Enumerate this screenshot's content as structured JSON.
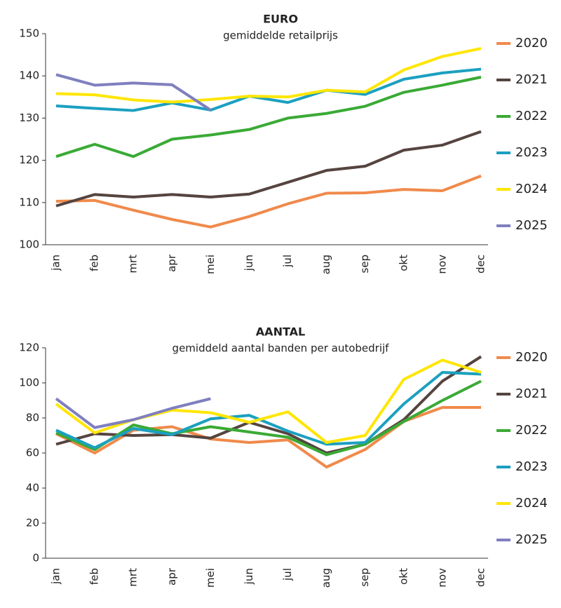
{
  "chart_data": [
    {
      "type": "line",
      "title": "EURO",
      "subtitle": "gemiddelde retailprijs",
      "categories": [
        "jan",
        "feb",
        "mrt",
        "apr",
        "mei",
        "jun",
        "jul",
        "aug",
        "sep",
        "okt",
        "nov",
        "dec"
      ],
      "ylim": [
        100,
        150
      ],
      "yticks": [
        100,
        110,
        120,
        130,
        140,
        150
      ],
      "series": [
        {
          "name": "2020",
          "color": "#f08a4b",
          "values": [
            110.3,
            110.5,
            108.2,
            106,
            104.2,
            106.7,
            109.7,
            112.2,
            112.3,
            113.1,
            112.8,
            116.3
          ]
        },
        {
          "name": "2021",
          "color": "#55443f",
          "values": [
            109.2,
            111.9,
            111.3,
            111.9,
            111.3,
            112,
            114.8,
            117.6,
            118.6,
            122.4,
            123.6,
            126.8
          ]
        },
        {
          "name": "2022",
          "color": "#3aaa35",
          "values": [
            120.9,
            123.8,
            120.9,
            125,
            126,
            127.3,
            130,
            131.1,
            132.8,
            136.1,
            137.8,
            139.7
          ]
        },
        {
          "name": "2023",
          "color": "#1ba0c0",
          "values": [
            132.9,
            132.3,
            131.8,
            133.6,
            131.9,
            135.2,
            133.7,
            136.6,
            135.6,
            139.2,
            140.7,
            141.6
          ]
        },
        {
          "name": "2024",
          "color": "#ffe600",
          "values": [
            135.8,
            135.5,
            134.3,
            133.8,
            134.4,
            135.2,
            135,
            136.6,
            136.2,
            141.4,
            144.6,
            146.5
          ]
        },
        {
          "name": "2025",
          "color": "#7f7fbf",
          "values": [
            140.3,
            137.8,
            138.3,
            137.9,
            131.9,
            null,
            null,
            null,
            null,
            null,
            null,
            null
          ]
        }
      ]
    },
    {
      "type": "line",
      "title": "AANTAL",
      "subtitle": "gemiddeld aantal banden per autobedrijf",
      "categories": [
        "jan",
        "feb",
        "mrt",
        "apr",
        "mei",
        "jun",
        "jul",
        "aug",
        "sep",
        "okt",
        "nov",
        "dec"
      ],
      "ylim": [
        0,
        120
      ],
      "yticks": [
        0,
        20,
        40,
        60,
        80,
        100,
        120
      ],
      "series": [
        {
          "name": "2020",
          "color": "#f08a4b",
          "values": [
            71,
            60,
            73,
            75,
            68,
            66,
            67.5,
            52,
            62,
            78,
            86,
            86
          ]
        },
        {
          "name": "2021",
          "color": "#55443f",
          "values": [
            65,
            71,
            70,
            70.5,
            68.5,
            77.5,
            71,
            60,
            65,
            79,
            101,
            115
          ]
        },
        {
          "name": "2022",
          "color": "#3aaa35",
          "values": [
            71.5,
            62,
            76,
            71,
            75,
            72,
            69,
            59,
            65,
            78,
            90,
            101
          ]
        },
        {
          "name": "2023",
          "color": "#1ba0c0",
          "values": [
            73,
            63,
            74,
            70.5,
            79.5,
            81.5,
            72.5,
            65,
            66,
            88,
            106,
            105
          ]
        },
        {
          "name": "2024",
          "color": "#ffe600",
          "values": [
            88,
            71.5,
            79,
            84.5,
            83,
            77.5,
            83.5,
            66,
            70,
            102,
            113,
            106
          ]
        },
        {
          "name": "2025",
          "color": "#7f7fbf",
          "values": [
            91,
            74.5,
            79,
            85.5,
            91,
            null,
            null,
            null,
            null,
            null,
            null,
            null
          ]
        }
      ]
    }
  ]
}
